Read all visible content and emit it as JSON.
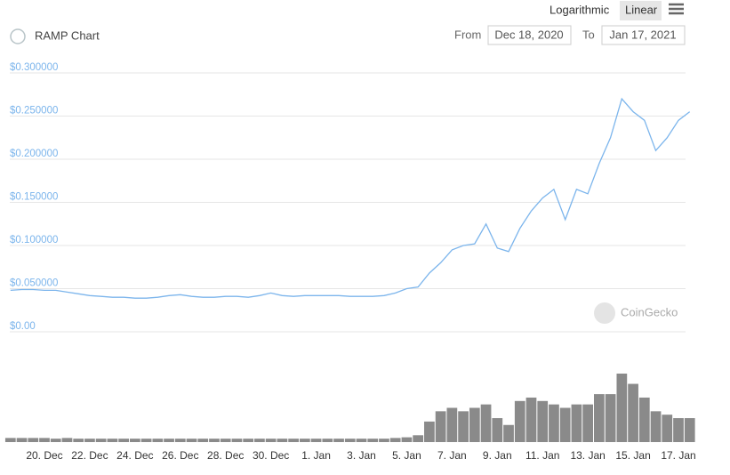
{
  "chart_data": {
    "type": "line",
    "title": "RAMP Chart",
    "color": "#7cb5ec",
    "categories": [
      null,
      null,
      null,
      "20. Dec",
      null,
      null,
      null,
      "22. Dec",
      null,
      null,
      null,
      "24. Dec",
      null,
      null,
      null,
      "26. Dec",
      null,
      null,
      null,
      "28. Dec",
      null,
      null,
      null,
      "30. Dec",
      null,
      null,
      null,
      "1. Jan",
      null,
      null,
      null,
      "3. Jan",
      null,
      null,
      null,
      "5. Jan",
      null,
      null,
      null,
      "7. Jan",
      null,
      null,
      null,
      "9. Jan",
      null,
      null,
      null,
      "11. Jan",
      null,
      null,
      null,
      "13. Jan",
      null,
      null,
      null,
      "15. Jan",
      null,
      null,
      null,
      "17. Jan",
      null
    ],
    "values": [
      0.048,
      0.049,
      0.049,
      0.048,
      0.048,
      0.046,
      0.044,
      0.042,
      0.041,
      0.04,
      0.04,
      0.039,
      0.039,
      0.04,
      0.042,
      0.043,
      0.041,
      0.04,
      0.04,
      0.041,
      0.041,
      0.04,
      0.042,
      0.045,
      0.042,
      0.041,
      0.042,
      0.042,
      0.042,
      0.042,
      0.041,
      0.041,
      0.041,
      0.042,
      0.045,
      0.05,
      0.052,
      0.068,
      0.08,
      0.095,
      0.1,
      0.102,
      0.125,
      0.097,
      0.093,
      0.12,
      0.14,
      0.155,
      0.165,
      0.13,
      0.165,
      0.16,
      0.195,
      0.225,
      0.27,
      0.255,
      0.245,
      0.21,
      0.225,
      0.245,
      0.255
    ],
    "ylim": [
      0,
      0.3
    ],
    "yticks": [
      {
        "value": 0,
        "label": "$0.00"
      },
      {
        "value": 0.05,
        "label": "$0.050000"
      },
      {
        "value": 0.1,
        "label": "$0.100000"
      },
      {
        "value": 0.15,
        "label": "$0.150000"
      },
      {
        "value": 0.2,
        "label": "$0.200000"
      },
      {
        "value": 0.25,
        "label": "$0.250000"
      },
      {
        "value": 0.3,
        "label": "$0.300000"
      }
    ],
    "grid": true,
    "volume": {
      "type": "bar",
      "color": "#8a8a8a",
      "values": [
        6,
        6,
        6,
        6,
        5,
        6,
        5,
        5,
        5,
        5,
        5,
        5,
        5,
        5,
        5,
        5,
        5,
        5,
        5,
        5,
        5,
        5,
        5,
        5,
        5,
        5,
        5,
        5,
        5,
        5,
        5,
        5,
        5,
        5,
        6,
        7,
        10,
        30,
        45,
        50,
        45,
        50,
        55,
        35,
        25,
        60,
        65,
        60,
        55,
        50,
        55,
        55,
        70,
        70,
        100,
        85,
        65,
        45,
        40,
        35,
        35
      ]
    }
  },
  "ui": {
    "scale_buttons": [
      "Logarithmic",
      "Linear"
    ],
    "active_scale": "Linear",
    "from_label": "From",
    "from_value": "Dec 18, 2020",
    "to_label": "To",
    "to_value": "Jan 17, 2021",
    "watermark": "CoinGecko"
  }
}
